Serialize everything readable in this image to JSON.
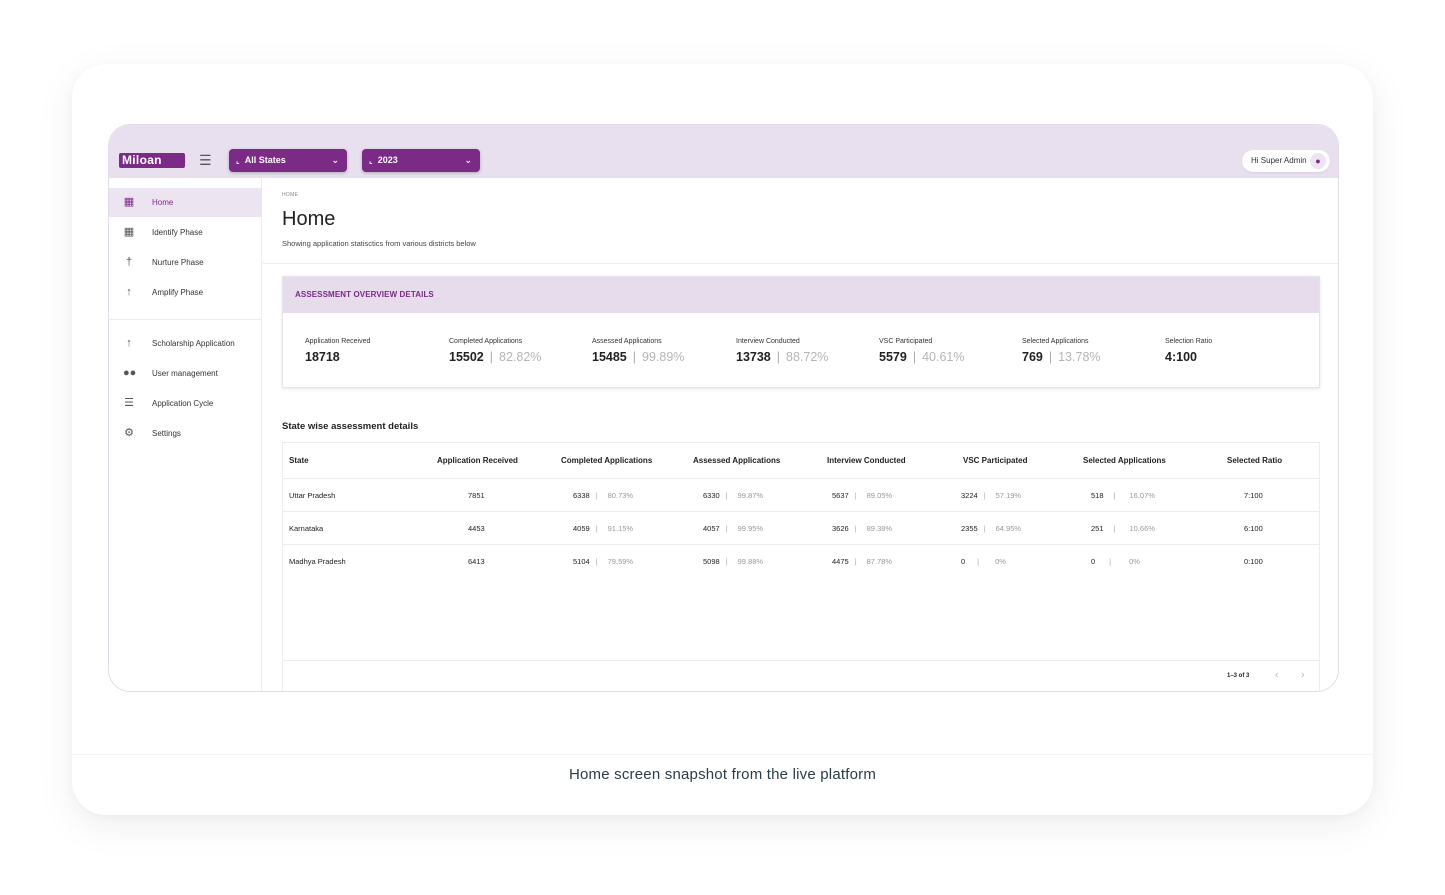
{
  "app": {
    "logo_text": "Miloan",
    "logo_figures": "♈♈",
    "state_filter": "All States",
    "year_filter": "2023",
    "user_greeting": "Hi Super Admin"
  },
  "sidebar": {
    "items": [
      {
        "label": "Home",
        "icon": "dashboard-icon"
      },
      {
        "label": "Identify Phase",
        "icon": "identify-icon"
      },
      {
        "label": "Nurture Phase",
        "icon": "nurture-icon"
      },
      {
        "label": "Amplify Phase",
        "icon": "amplify-icon"
      },
      {
        "label": "Scholarship Application",
        "icon": "scholarship-icon"
      },
      {
        "label": "User management",
        "icon": "users-icon"
      },
      {
        "label": "Application Cycle",
        "icon": "list-icon"
      },
      {
        "label": "Settings",
        "icon": "gear-icon"
      }
    ]
  },
  "page": {
    "breadcrumb": "HOME",
    "title": "Home",
    "subtitle": "Showing application statisctics from various districts below"
  },
  "overview": {
    "title": "ASSESSMENT OVERVIEW DETAILS",
    "stats": [
      {
        "label": "Application Received",
        "value": "18718",
        "pct": ""
      },
      {
        "label": "Completed Applications",
        "value": "15502",
        "pct": "82.82%"
      },
      {
        "label": "Assessed Applications",
        "value": "15485",
        "pct": "99.89%"
      },
      {
        "label": "Interview Conducted",
        "value": "13738",
        "pct": "88.72%"
      },
      {
        "label": "VSC Participated",
        "value": "5579",
        "pct": "40.61%"
      },
      {
        "label": "Selected Applications",
        "value": "769",
        "pct": "13.78%"
      },
      {
        "label": "Selection Ratio",
        "value": "4:100",
        "pct": ""
      }
    ]
  },
  "table": {
    "title": "State wise assessment details",
    "headers": [
      "State",
      "Application Received",
      "Completed Applications",
      "Assessed Applications",
      "Interview Conducted",
      "VSC Participated",
      "Selected Applications",
      "Selected Ratio"
    ],
    "rows": [
      {
        "state": "Uttar Pradesh",
        "received": "7851",
        "completed": "6338",
        "completed_pct": "80.73%",
        "assessed": "6330",
        "assessed_pct": "99.87%",
        "interview": "5637",
        "interview_pct": "89.05%",
        "vsc": "3224",
        "vsc_pct": "57.19%",
        "selected": "518",
        "selected_pct": "16.07%",
        "ratio": "7:100"
      },
      {
        "state": "Karnataka",
        "received": "4453",
        "completed": "4059",
        "completed_pct": "91.15%",
        "assessed": "4057",
        "assessed_pct": "99.95%",
        "interview": "3626",
        "interview_pct": "89.38%",
        "vsc": "2355",
        "vsc_pct": "64.95%",
        "selected": "251",
        "selected_pct": "10.66%",
        "ratio": "6:100"
      },
      {
        "state": "Madhya Pradesh",
        "received": "6413",
        "completed": "5104",
        "completed_pct": "79.59%",
        "assessed": "5098",
        "assessed_pct": "99.88%",
        "interview": "4475",
        "interview_pct": "87.78%",
        "vsc": "0",
        "vsc_pct": "0%",
        "selected": "0",
        "selected_pct": "0%",
        "ratio": "0:100"
      }
    ],
    "pagination": "1–3 of 3"
  },
  "caption": "Home screen snapshot from the live platform",
  "colors": {
    "accent": "#7b2a85",
    "header_bg": "#e8e0ef",
    "active_bg": "#ece5f1"
  }
}
